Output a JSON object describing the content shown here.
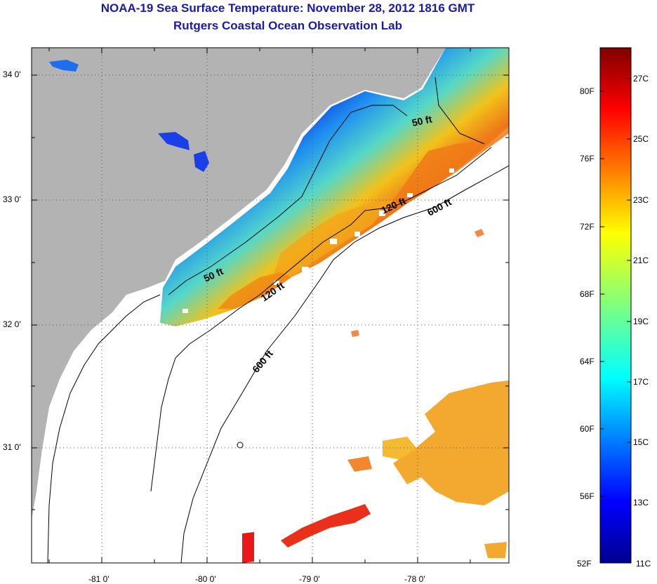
{
  "title": {
    "line1": "NOAA-19 Sea Surface Temperature:  November 28, 2012 1816 GMT",
    "line2": "Rutgers Coastal Ocean Observation Lab"
  },
  "colors": {
    "title": "#1a1aa8",
    "land": "#b3b3b3",
    "clouds": "#ffffff"
  },
  "map": {
    "lat_ticks": [
      "34 0'",
      "33 0'",
      "32 0'",
      "31 0'"
    ],
    "lon_ticks": [
      "-81 0'",
      "-80 0'",
      "-79 0'",
      "-78 0'"
    ],
    "contours": {
      "c50_a": "50 ft",
      "c50_b": "50 ft",
      "c120_a": "120 ft",
      "c120_b": "120 ft",
      "c600_a": "600 ft",
      "c600_b": "600 ft"
    }
  },
  "colorbar": {
    "fahrenheit": [
      "80F",
      "76F",
      "72F",
      "68F",
      "64F",
      "60F",
      "56F",
      "52F"
    ],
    "celsius": [
      "27C",
      "25C",
      "23C",
      "21C",
      "19C",
      "17C",
      "15C",
      "13C",
      "11C"
    ]
  }
}
